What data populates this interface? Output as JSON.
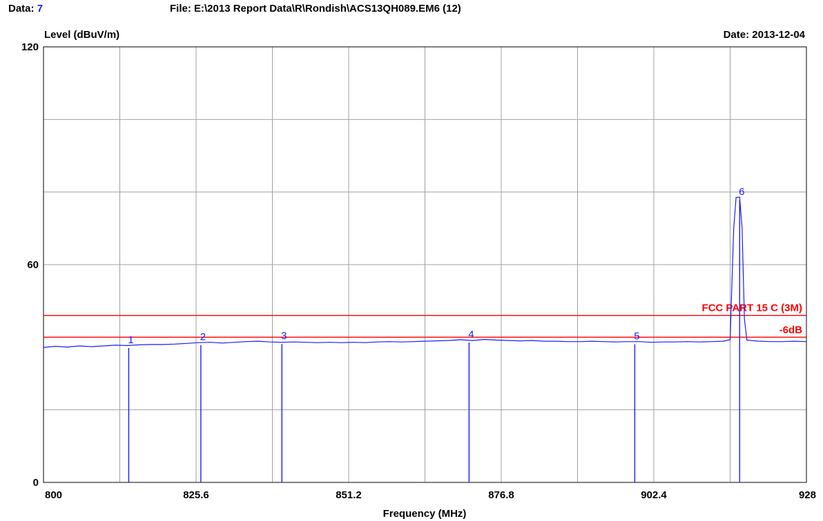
{
  "header": {
    "data_label": "Data:",
    "data_value": "7",
    "file_text": "File: E:\\2013 Report Data\\R\\Rondish\\ACS13QH089.EM6  (12)",
    "date_text": "Date: 2013-12-04"
  },
  "chart_data": {
    "type": "line",
    "title": "",
    "xlabel": "Frequency (MHz)",
    "ylabel": "Level (dBuV/m)",
    "xlim": [
      800,
      928
    ],
    "ylim": [
      0,
      120
    ],
    "x_ticks": [
      800,
      825.6,
      851.2,
      876.8,
      902.4,
      928
    ],
    "x_tick_labels": [
      "800",
      "825.6",
      "851.2",
      "876.8",
      "902.4",
      "928"
    ],
    "y_ticks": [
      0,
      60,
      120
    ],
    "y_tick_labels": [
      "0",
      "60",
      "120"
    ],
    "grid": true,
    "x_grid_step": 12.8,
    "y_grid_step": 20,
    "colors": {
      "trace": "#1a1aff",
      "limit": "#ff0000",
      "grid": "#a0a0a0"
    },
    "limit_lines": [
      {
        "name": "FCC PART 15 C (3M)",
        "y": 46
      },
      {
        "name": "-6dB",
        "y": 40
      }
    ],
    "series": [
      {
        "values": [
          [
            800,
            37.2
          ],
          [
            802,
            37.5
          ],
          [
            804,
            37.3
          ],
          [
            806,
            37.6
          ],
          [
            808,
            37.4
          ],
          [
            810,
            37.6
          ],
          [
            812,
            37.8
          ],
          [
            814,
            37.7
          ],
          [
            816,
            37.9
          ],
          [
            818,
            38.0
          ],
          [
            820,
            38.0
          ],
          [
            822,
            38.1
          ],
          [
            824,
            38.3
          ],
          [
            826,
            38.5
          ],
          [
            828,
            38.6
          ],
          [
            830,
            38.4
          ],
          [
            832,
            38.6
          ],
          [
            834,
            38.8
          ],
          [
            836,
            38.9
          ],
          [
            838,
            38.7
          ],
          [
            840,
            38.6
          ],
          [
            842,
            38.7
          ],
          [
            844,
            38.6
          ],
          [
            846,
            38.5
          ],
          [
            848,
            38.6
          ],
          [
            850,
            38.5
          ],
          [
            852,
            38.6
          ],
          [
            854,
            38.5
          ],
          [
            856,
            38.7
          ],
          [
            858,
            38.8
          ],
          [
            860,
            38.7
          ],
          [
            862,
            38.8
          ],
          [
            864,
            38.9
          ],
          [
            866,
            39.0
          ],
          [
            868,
            39.1
          ],
          [
            870,
            39.3
          ],
          [
            872,
            39.1
          ],
          [
            874,
            39.4
          ],
          [
            876,
            39.2
          ],
          [
            878,
            39.1
          ],
          [
            880,
            39.0
          ],
          [
            882,
            39.1
          ],
          [
            884,
            38.9
          ],
          [
            886,
            38.9
          ],
          [
            888,
            38.8
          ],
          [
            890,
            38.8
          ],
          [
            892,
            38.9
          ],
          [
            894,
            38.8
          ],
          [
            896,
            38.7
          ],
          [
            898,
            38.8
          ],
          [
            900,
            38.8
          ],
          [
            902,
            38.6
          ],
          [
            904,
            38.7
          ],
          [
            906,
            38.7
          ],
          [
            908,
            38.8
          ],
          [
            910,
            38.7
          ],
          [
            912,
            38.8
          ],
          [
            914,
            38.9
          ],
          [
            915.2,
            39.3
          ],
          [
            915.5,
            55
          ],
          [
            915.8,
            70
          ],
          [
            916.2,
            78.5
          ],
          [
            916.8,
            78.6
          ],
          [
            917.2,
            70
          ],
          [
            917.6,
            45
          ],
          [
            918,
            39.2
          ],
          [
            920,
            38.9
          ],
          [
            922,
            38.8
          ],
          [
            924,
            38.8
          ],
          [
            926,
            38.9
          ],
          [
            928,
            38.8
          ]
        ]
      }
    ],
    "markers": [
      {
        "label": "1",
        "x": 814.3,
        "y": 37.8
      },
      {
        "label": "2",
        "x": 826.4,
        "y": 38.6
      },
      {
        "label": "3",
        "x": 840.0,
        "y": 38.9
      },
      {
        "label": "4",
        "x": 871.4,
        "y": 39.3
      },
      {
        "label": "5",
        "x": 899.2,
        "y": 38.8
      },
      {
        "label": "6",
        "x": 916.8,
        "y": 78.6
      }
    ]
  }
}
